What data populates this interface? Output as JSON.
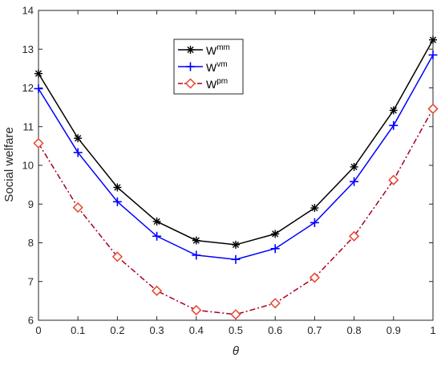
{
  "chart_data": {
    "type": "line",
    "xlabel": "θ",
    "ylabel": "Social welfare",
    "xlim": [
      0,
      1
    ],
    "ylim": [
      6,
      14
    ],
    "x": [
      0,
      0.1,
      0.2,
      0.3,
      0.4,
      0.5,
      0.6,
      0.7,
      0.8,
      0.9,
      1
    ],
    "xticks": [
      "0",
      "0.1",
      "0.2",
      "0.3",
      "0.4",
      "0.5",
      "0.6",
      "0.7",
      "0.8",
      "0.9",
      "1"
    ],
    "yticks": [
      "6",
      "7",
      "8",
      "9",
      "10",
      "11",
      "12",
      "13",
      "14"
    ],
    "grid": false,
    "legend_position": "top-center",
    "series": [
      {
        "name": "W",
        "superscript": "mm",
        "color": "#000000",
        "marker": "asterisk",
        "line_style": "solid",
        "values": [
          12.37,
          10.7,
          9.43,
          8.55,
          8.06,
          7.95,
          8.23,
          8.9,
          9.96,
          11.42,
          13.24
        ]
      },
      {
        "name": "W",
        "superscript": "vm",
        "color": "#0000ff",
        "marker": "plus",
        "line_style": "solid",
        "values": [
          11.98,
          10.33,
          9.06,
          8.17,
          7.68,
          7.57,
          7.85,
          8.52,
          9.58,
          11.03,
          12.85
        ]
      },
      {
        "name": "W",
        "superscript": "pm",
        "color": "#a50021",
        "marker": "diamond",
        "marker_color": "#e8452c",
        "line_style": "dash-dot",
        "values": [
          10.57,
          8.91,
          7.64,
          6.76,
          6.26,
          6.15,
          6.44,
          7.1,
          8.17,
          9.62,
          11.46
        ]
      }
    ]
  }
}
